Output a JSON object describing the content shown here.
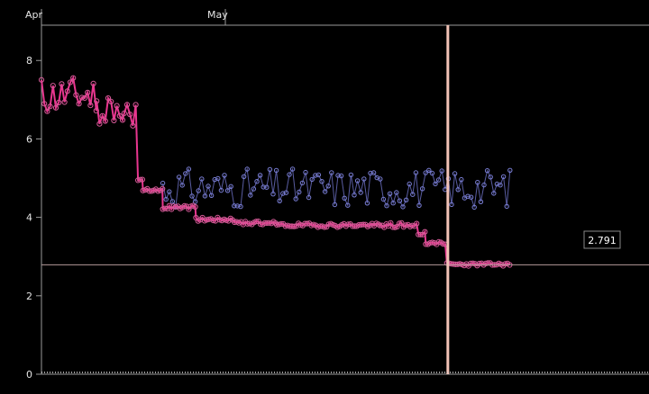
{
  "chart_data": {
    "type": "line",
    "x_ticks": [
      "Apr",
      "May"
    ],
    "y_ticks": [
      "0",
      "2",
      "4",
      "6",
      "8"
    ],
    "ylim": [
      0,
      8.9
    ],
    "grid": false,
    "series": [
      {
        "color": "#e8368f",
        "marker_color": "#d65a98",
        "segments": [
          {
            "x0": 0,
            "x1": 0.3,
            "mean": 7.1,
            "amp": 0.5,
            "seed": 11
          },
          {
            "x0": 0.3,
            "x1": 0.45,
            "mean": 6.75,
            "amp": 0.45,
            "seed": 12
          },
          {
            "x0": 0.45,
            "x1": 0.525,
            "mean": 6.6,
            "amp": 0.35,
            "seed": 13
          },
          {
            "x0": 0.525,
            "x1": 0.552,
            "mean": 4.95,
            "amp": 0.03,
            "seed": 14
          },
          {
            "x0": 0.552,
            "x1": 0.66,
            "mean": 4.7,
            "amp": 0.03,
            "seed": 15
          },
          {
            "x0": 0.66,
            "x1": 0.84,
            "mean": 4.25,
            "amp": 0.05,
            "seed": 16
          },
          {
            "x0": 0.84,
            "x1": 1.05,
            "mean": 3.95,
            "amp": 0.05,
            "seed": 17
          },
          {
            "x0": 1.05,
            "x1": 1.28,
            "mean": 3.85,
            "amp": 0.05,
            "seed": 18
          },
          {
            "x0": 1.28,
            "x1": 1.84,
            "mean": 3.8,
            "amp": 0.05,
            "seed": 19
          },
          {
            "x0": 1.84,
            "x1": 2.05,
            "mean": 3.8,
            "amp": 0.06,
            "seed": 20
          },
          {
            "x0": 2.05,
            "x1": 2.09,
            "mean": 3.6,
            "amp": 0.08,
            "seed": 21
          },
          {
            "x0": 2.09,
            "x1": 2.205,
            "mean": 3.35,
            "amp": 0.04,
            "seed": 22
          },
          {
            "x0": 2.205,
            "x1": 2.55,
            "mean": 2.8,
            "amp": 0.04,
            "seed": 23
          }
        ]
      },
      {
        "color": "#6f73c9",
        "marker_color": "#7a7fd6",
        "segments": [
          {
            "x0": 0.66,
            "x1": 2.55,
            "mean": 4.75,
            "amp": 0.5,
            "seed": 31
          }
        ]
      }
    ],
    "reference_line": {
      "y": 2.791
    },
    "cursor": {
      "x": 2.21
    },
    "tooltip": {
      "value": "2.791"
    }
  }
}
